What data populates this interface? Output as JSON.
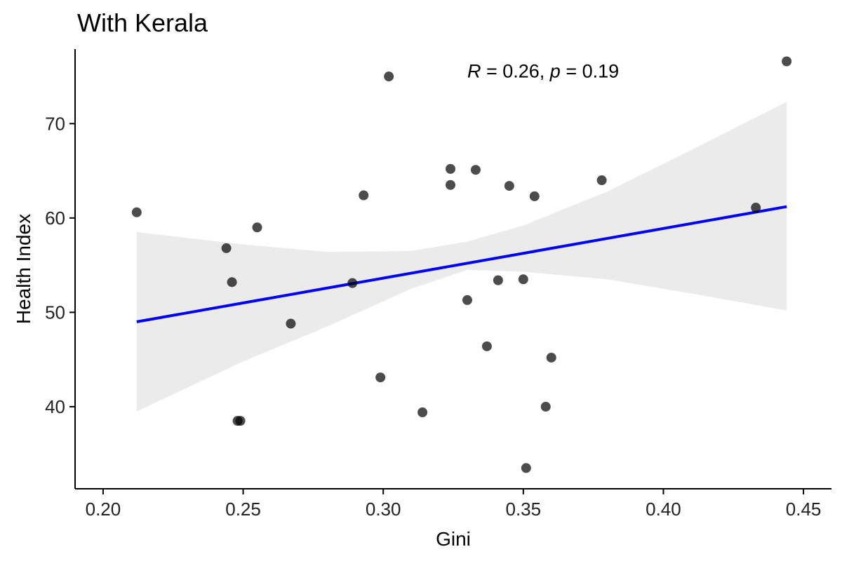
{
  "chart_data": {
    "type": "scatter",
    "title": "With Kerala",
    "xlabel": "Gini",
    "ylabel": "Health Index",
    "xlim": [
      0.19,
      0.46
    ],
    "ylim": [
      31.3,
      77.9
    ],
    "x_ticks": [
      0.2,
      0.25,
      0.3,
      0.35,
      0.4,
      0.45
    ],
    "x_tick_labels": [
      "0.20",
      "0.25",
      "0.30",
      "0.35",
      "0.40",
      "0.45"
    ],
    "y_ticks": [
      40,
      50,
      60,
      70
    ],
    "y_tick_labels": [
      "40",
      "50",
      "60",
      "70"
    ],
    "grid": false,
    "annotation": {
      "R_symbol": "R",
      "R_eq": " = 0.26, ",
      "p_symbol": "p",
      "p_eq": " = 0.19",
      "x": 0.33,
      "y": 74.9
    },
    "points": [
      {
        "x": 0.212,
        "y": 60.6
      },
      {
        "x": 0.244,
        "y": 56.8
      },
      {
        "x": 0.246,
        "y": 53.2
      },
      {
        "x": 0.248,
        "y": 38.5
      },
      {
        "x": 0.249,
        "y": 38.5
      },
      {
        "x": 0.255,
        "y": 59.0
      },
      {
        "x": 0.267,
        "y": 48.8
      },
      {
        "x": 0.289,
        "y": 53.1
      },
      {
        "x": 0.293,
        "y": 62.4
      },
      {
        "x": 0.299,
        "y": 43.1
      },
      {
        "x": 0.302,
        "y": 75.0
      },
      {
        "x": 0.314,
        "y": 39.4
      },
      {
        "x": 0.324,
        "y": 65.2
      },
      {
        "x": 0.324,
        "y": 63.5
      },
      {
        "x": 0.33,
        "y": 51.3
      },
      {
        "x": 0.333,
        "y": 65.1
      },
      {
        "x": 0.337,
        "y": 46.4
      },
      {
        "x": 0.341,
        "y": 53.4
      },
      {
        "x": 0.345,
        "y": 63.4
      },
      {
        "x": 0.35,
        "y": 53.5
      },
      {
        "x": 0.351,
        "y": 33.5
      },
      {
        "x": 0.354,
        "y": 62.3
      },
      {
        "x": 0.358,
        "y": 40.0
      },
      {
        "x": 0.36,
        "y": 45.2
      },
      {
        "x": 0.378,
        "y": 64.0
      },
      {
        "x": 0.433,
        "y": 61.1
      },
      {
        "x": 0.444,
        "y": 76.6
      }
    ],
    "regression": {
      "x": [
        0.212,
        0.444
      ],
      "y": [
        49.0,
        61.2
      ],
      "color": "#0000ff"
    },
    "confidence_band": {
      "x": [
        0.212,
        0.25,
        0.28,
        0.31,
        0.33,
        0.35,
        0.38,
        0.41,
        0.444
      ],
      "upper": [
        58.5,
        57.2,
        56.4,
        56.5,
        57.5,
        59.2,
        62.8,
        67.2,
        72.3
      ],
      "lower": [
        39.5,
        44.8,
        48.5,
        52.5,
        54.5,
        54.3,
        53.5,
        52.0,
        50.2
      ],
      "color": "#ebebeb"
    },
    "point_color": "#000000",
    "point_opacity": 0.7
  }
}
